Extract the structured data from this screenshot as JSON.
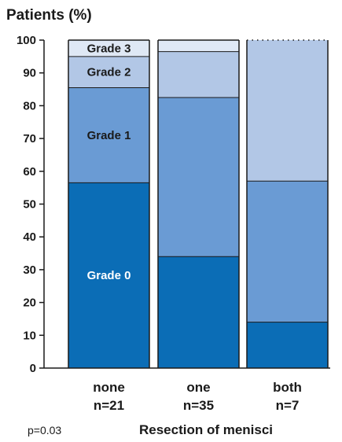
{
  "chart_data": {
    "type": "bar",
    "stacked": true,
    "ylabel": "Patients (%)",
    "xlabel": "Resection of menisci",
    "annotation": "p=0.03",
    "ylim": [
      0,
      100
    ],
    "yticks": [
      0,
      10,
      20,
      30,
      40,
      50,
      60,
      70,
      80,
      90,
      100
    ],
    "categories": [
      {
        "name": "none",
        "n": "n=21"
      },
      {
        "name": "one",
        "n": "n=35"
      },
      {
        "name": "both",
        "n": "n=7"
      }
    ],
    "series": [
      {
        "name": "Grade 0",
        "color": "#0b6db6",
        "label_color": "#ffffff",
        "values": [
          56.5,
          34,
          14
        ]
      },
      {
        "name": "Grade 1",
        "color": "#6a9bd4",
        "label_color": "#1a1a1a",
        "values": [
          29,
          48.5,
          43
        ]
      },
      {
        "name": "Grade 2",
        "color": "#b2c7e6",
        "label_color": "#1a1a1a",
        "values": [
          9.5,
          14,
          43
        ]
      },
      {
        "name": "Grade 3",
        "color": "#dfe8f5",
        "label_color": "#1a1a1a",
        "values": [
          5,
          3.5,
          0
        ]
      }
    ],
    "segment_labels_on_category": 0,
    "grid": false
  }
}
